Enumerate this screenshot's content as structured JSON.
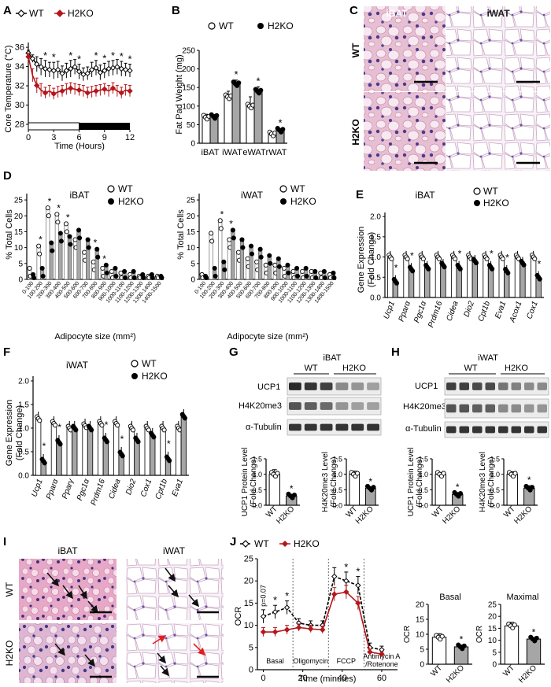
{
  "colors": {
    "wt": "#000000",
    "h2ko": "#b5161b",
    "bar_h2ko": "#a6a6a6",
    "bar_wt": "#ffffff",
    "he_pink": "#e8b8cf",
    "he_nuclei": "#4b3a8c",
    "he_fat": "#f6eef6"
  },
  "panels": {
    "A": {
      "letter": "A",
      "legend": [
        "WT",
        "H2KO"
      ],
      "xlabel": "Time (Hours)",
      "ylabel": "Core Temperature (°C)",
      "yticks": [
        "28",
        "30",
        "32",
        "34",
        "36"
      ],
      "xticks": [
        "0",
        "3",
        "6",
        "9",
        "12"
      ],
      "star": "*",
      "light_dark_bar": {
        "light": [
          0,
          6
        ],
        "dark": [
          6,
          12
        ]
      },
      "chart_data": {
        "type": "line",
        "x": [
          0,
          0.5,
          1,
          1.5,
          2,
          2.5,
          3,
          3.5,
          4,
          4.5,
          5,
          5.5,
          6,
          6.5,
          7,
          7.5,
          8,
          8.5,
          9,
          9.5,
          10,
          10.5,
          11,
          11.5,
          12
        ],
        "ylim": [
          28,
          36.5
        ],
        "xlim": [
          0,
          12
        ],
        "series": [
          {
            "name": "WT",
            "values": [
              35.7,
              35.1,
              34.5,
              34.2,
              34.0,
              33.9,
              33.8,
              33.9,
              33.5,
              33.8,
              34.0,
              34.2,
              33.7,
              33.4,
              33.5,
              33.9,
              34.1,
              33.6,
              33.8,
              34.0,
              34.1,
              34.2,
              34.0,
              33.9,
              33.8
            ],
            "errors": [
              0.3,
              0.4,
              0.8,
              0.9,
              0.9,
              0.8,
              0.9,
              0.9,
              0.8,
              0.8,
              0.9,
              0.8,
              0.8,
              0.7,
              0.7,
              0.8,
              0.8,
              0.8,
              0.8,
              0.8,
              0.8,
              0.8,
              0.8,
              0.7,
              0.7
            ]
          },
          {
            "name": "H2KO",
            "values": [
              35.3,
              33.3,
              32.2,
              31.7,
              31.4,
              31.6,
              31.3,
              31.5,
              31.6,
              31.8,
              31.9,
              31.8,
              31.7,
              31.6,
              31.4,
              31.5,
              31.6,
              31.7,
              31.8,
              31.6,
              31.9,
              31.6,
              31.4,
              31.7,
              31.6
            ],
            "errors": [
              0.4,
              0.7,
              0.8,
              0.7,
              0.6,
              0.6,
              0.6,
              0.6,
              0.6,
              0.6,
              0.6,
              0.6,
              0.6,
              0.6,
              0.6,
              0.6,
              0.6,
              0.6,
              0.6,
              0.6,
              0.6,
              0.6,
              0.6,
              0.6,
              0.6
            ]
          }
        ],
        "significant_x": [
          2,
          3,
          5,
          6,
          8,
          9,
          10,
          11,
          12
        ]
      }
    },
    "B": {
      "letter": "B",
      "legend": [
        "WT",
        "H2KO"
      ],
      "ylabel": "Fat Pad Weight (mg)",
      "yticks": [
        "0",
        "50",
        "100",
        "150",
        "200",
        "250"
      ],
      "star": "*",
      "chart_data": {
        "type": "bar",
        "categories": [
          "iBAT",
          "iWAT",
          "eWAT",
          "rWAT"
        ],
        "ylim": [
          0,
          250
        ],
        "series": [
          {
            "name": "WT",
            "values": [
              70,
              125,
              100,
              25
            ],
            "errors": [
              8,
              15,
              25,
              3
            ]
          },
          {
            "name": "H2KO",
            "values": [
              72,
              160,
              140,
              35
            ],
            "errors": [
              5,
              10,
              12,
              4
            ]
          }
        ],
        "significant": [
          "iWAT",
          "eWAT",
          "rWAT"
        ]
      }
    },
    "C": {
      "letter": "C",
      "col_labels": [
        "iBAT",
        "iWAT"
      ],
      "row_labels": [
        "WT",
        "H2KO"
      ]
    },
    "D": {
      "letter": "D",
      "legend": [
        "WT",
        "H2KO"
      ],
      "ylabel": "% Total Cells",
      "xlabel": "Adipocyte size (mm²)",
      "yticks": [
        "0",
        "5",
        "10",
        "15",
        "20",
        "25"
      ],
      "size_bins": [
        "0-100",
        "100-200",
        "200-300",
        "300-400",
        "400-500",
        "500-600",
        "600-700",
        "700-800",
        "800-900",
        "900-1000",
        "1000-1100",
        "1100-1200",
        "1200-1300",
        "1300-1400",
        "1400-1500"
      ],
      "star": "*",
      "chart_data": [
        {
          "type": "bar",
          "title": "iBAT",
          "ylim": [
            0,
            27
          ],
          "series": [
            {
              "name": "WT",
              "values": [
                3,
                10,
                22,
                20,
                17,
                12,
                8,
                5,
                3,
                2,
                1.5,
                1,
                0.5,
                0.5,
                0.5
              ]
            },
            {
              "name": "H2KO",
              "values": [
                1,
                3,
                11,
                14,
                13,
                15,
                12,
                9,
                4,
                3,
                2,
                2,
                1,
                1,
                0.5
              ]
            }
          ],
          "significant_bins": [
            "100-200",
            "200-300",
            "300-400",
            "400-500",
            "700-800",
            "800-900"
          ]
        },
        {
          "type": "bar",
          "title": "iWAT",
          "ylim": [
            0,
            27
          ],
          "series": [
            {
              "name": "WT",
              "values": [
                1,
                14,
                18,
                12,
                8,
                6,
                5,
                4,
                4,
                3,
                2,
                2,
                2,
                1.5,
                1
              ]
            },
            {
              "name": "H2KO",
              "values": [
                0.5,
                3,
                5,
                15,
                12,
                10,
                9,
                7,
                6,
                4,
                3,
                3,
                2,
                2,
                1.5
              ]
            }
          ],
          "significant_bins": [
            "200-300",
            "300-400"
          ]
        }
      ]
    },
    "E": {
      "letter": "E",
      "title": "iBAT",
      "legend": [
        "WT",
        "H2KO"
      ],
      "ylabel": "Gene Expression (Fold Change)",
      "yticks": [
        "0.0",
        "0.5",
        "1.0",
        "1.5",
        "2.0"
      ],
      "star": "*",
      "chart_data": {
        "type": "bar",
        "categories": [
          "Ucp1",
          "Pparα",
          "Pgc1α",
          "Prdm16",
          "Cidea",
          "Dio2",
          "Cpt1b",
          "Eva1",
          "Acox1",
          "Cox1"
        ],
        "ylim": [
          0,
          2.1
        ],
        "series": [
          {
            "name": "WT",
            "values": [
              1.0,
              1.0,
              1.0,
              1.0,
              1.0,
              1.0,
              1.0,
              1.0,
              1.0,
              1.0
            ]
          },
          {
            "name": "H2KO",
            "values": [
              0.4,
              0.7,
              0.75,
              0.8,
              0.75,
              0.9,
              0.75,
              0.65,
              0.85,
              0.5
            ]
          }
        ],
        "significant": [
          "Ucp1",
          "Pparα",
          "Cidea",
          "Cpt1b",
          "Eva1",
          "Cox1"
        ]
      }
    },
    "F": {
      "letter": "F",
      "title": "iWAT",
      "legend": [
        "WT",
        "H2KO"
      ],
      "ylabel": "Gene Expression (Fold Change)",
      "yticks": [
        "0.0",
        "0.5",
        "1.0",
        "1.5",
        "2.0"
      ],
      "star": "*",
      "chart_data": {
        "type": "bar",
        "categories": [
          "Ucp1",
          "Pparα",
          "Pparγ",
          "Pgc1α",
          "Prdm16",
          "Cidea",
          "Dio2",
          "Cox1",
          "Cpt1b",
          "Eva1"
        ],
        "ylim": [
          0,
          2.1
        ],
        "series": [
          {
            "name": "WT",
            "values": [
              1.2,
              1.1,
              1.0,
              1.05,
              1.1,
              1.1,
              1.0,
              1.0,
              1.0,
              1.0
            ]
          },
          {
            "name": "H2KO",
            "values": [
              0.3,
              0.7,
              1.0,
              1.0,
              0.75,
              0.45,
              0.75,
              0.85,
              0.35,
              1.25
            ]
          }
        ],
        "significant": [
          "Ucp1",
          "Pparα",
          "Prdm16",
          "Cidea",
          "Cpt1b"
        ]
      }
    },
    "G": {
      "letter": "G",
      "blot_title": "iBAT",
      "groups": [
        "WT",
        "H2KO"
      ],
      "bands": [
        "UCP1",
        "H4K20me3",
        "α-Tubulin"
      ],
      "star": "*",
      "charts": [
        {
          "ylabel": "UCP1 Protein Level (Fold Change)",
          "yticks": [
            "0.0",
            "0.5",
            "1.0",
            "1.5"
          ],
          "categories": [
            "WT",
            "H2KO"
          ],
          "chart_data": {
            "type": "bar",
            "ylim": [
              0,
              1.5
            ],
            "values": [
              1.0,
              0.3
            ],
            "errors": [
              0.15,
              0.05
            ],
            "significant": [
              "H2KO"
            ]
          }
        },
        {
          "ylabel": "H4K20me3 Level (Fold Change)",
          "yticks": [
            "0.0",
            "0.5",
            "1.0",
            "1.5"
          ],
          "categories": [
            "WT",
            "H2KO"
          ],
          "chart_data": {
            "type": "bar",
            "ylim": [
              0,
              1.5
            ],
            "values": [
              1.0,
              0.55
            ],
            "errors": [
              0.1,
              0.03
            ],
            "significant": [
              "H2KO"
            ]
          }
        }
      ]
    },
    "H": {
      "letter": "H",
      "blot_title": "iWAT",
      "groups": [
        "WT",
        "H2KO"
      ],
      "bands": [
        "UCP1",
        "H4K20me3",
        "α-Tubulin"
      ],
      "star": "*",
      "charts": [
        {
          "ylabel": "UCP1 Protein Level (Fold Change)",
          "yticks": [
            "0.0",
            "0.5",
            "1.0",
            "1.5"
          ],
          "categories": [
            "WT",
            "H2KO"
          ],
          "chart_data": {
            "type": "bar",
            "ylim": [
              0,
              1.5
            ],
            "values": [
              1.0,
              0.35
            ],
            "errors": [
              0.06,
              0.06
            ],
            "significant": [
              "H2KO"
            ]
          }
        },
        {
          "ylabel": "H4K20me3 Level (Fold Change)",
          "yticks": [
            "0.0",
            "0.5",
            "1.0",
            "1.5"
          ],
          "categories": [
            "WT",
            "H2KO"
          ],
          "chart_data": {
            "type": "bar",
            "ylim": [
              0,
              1.5
            ],
            "values": [
              1.0,
              0.55
            ],
            "errors": [
              0.08,
              0.08
            ],
            "significant": [
              "H2KO"
            ]
          }
        }
      ]
    },
    "I": {
      "letter": "I",
      "col_labels": [
        "iBAT",
        "iWAT"
      ],
      "row_labels": [
        "WT",
        "H2KO"
      ]
    },
    "J": {
      "letter": "J",
      "legend": [
        "WT",
        "H2KO"
      ],
      "ylabel": "OCR",
      "xlabel": "Time (minutes)",
      "yticks": [
        "0",
        "5",
        "10",
        "15",
        "20",
        "25"
      ],
      "xticks": [
        "0",
        "20",
        "40",
        "60"
      ],
      "pvalue_label": "p=0.07",
      "phases": [
        "Basal",
        "Oligomycin",
        "FCCP",
        "Antimycin A",
        "/Rotenone"
      ],
      "star": "*",
      "chart_data": {
        "type": "line",
        "x": [
          0,
          6,
          12,
          18,
          24,
          30,
          36,
          42,
          48,
          54,
          60
        ],
        "xlim": [
          -3,
          68
        ],
        "ylim": [
          0,
          25
        ],
        "series": [
          {
            "name": "WT",
            "values": [
              12.0,
              13.0,
              14.0,
              10.5,
              10.0,
              10.0,
              21.0,
              20.0,
              19.0,
              5.0,
              4.5
            ],
            "errors": [
              1.5,
              1.5,
              1.5,
              1.0,
              1.0,
              1.0,
              2.0,
              2.0,
              2.0,
              1.0,
              0.8
            ]
          },
          {
            "name": "H2KO",
            "values": [
              8.5,
              8.5,
              9.0,
              9.5,
              9.2,
              9.0,
              17.0,
              17.5,
              15.0,
              4.0,
              3.5
            ],
            "errors": [
              1.0,
              1.0,
              1.0,
              0.8,
              0.8,
              0.8,
              1.5,
              1.5,
              1.5,
              0.6,
              0.5
            ]
          }
        ],
        "significant_x": [
          6,
          12,
          42,
          48
        ]
      },
      "insets": [
        {
          "title": "Basal",
          "ylabel": "OCR",
          "yticks": [
            "0",
            "5",
            "10",
            "15",
            "20"
          ],
          "categories": [
            "WT",
            "H2KO"
          ],
          "chart_data": {
            "type": "bar",
            "ylim": [
              0,
              20
            ],
            "values": [
              9.0,
              5.8
            ],
            "errors": [
              1.2,
              0.6
            ],
            "significant": [
              "H2KO"
            ]
          }
        },
        {
          "title": "Maximal",
          "ylabel": "OCR",
          "yticks": [
            "0",
            "5",
            "10",
            "15",
            "20",
            "25"
          ],
          "categories": [
            "WT",
            "H2KO"
          ],
          "chart_data": {
            "type": "bar",
            "ylim": [
              0,
              25
            ],
            "values": [
              16.0,
              10.5
            ],
            "errors": [
              1.5,
              0.5
            ],
            "significant": [
              "H2KO"
            ]
          }
        }
      ]
    }
  }
}
